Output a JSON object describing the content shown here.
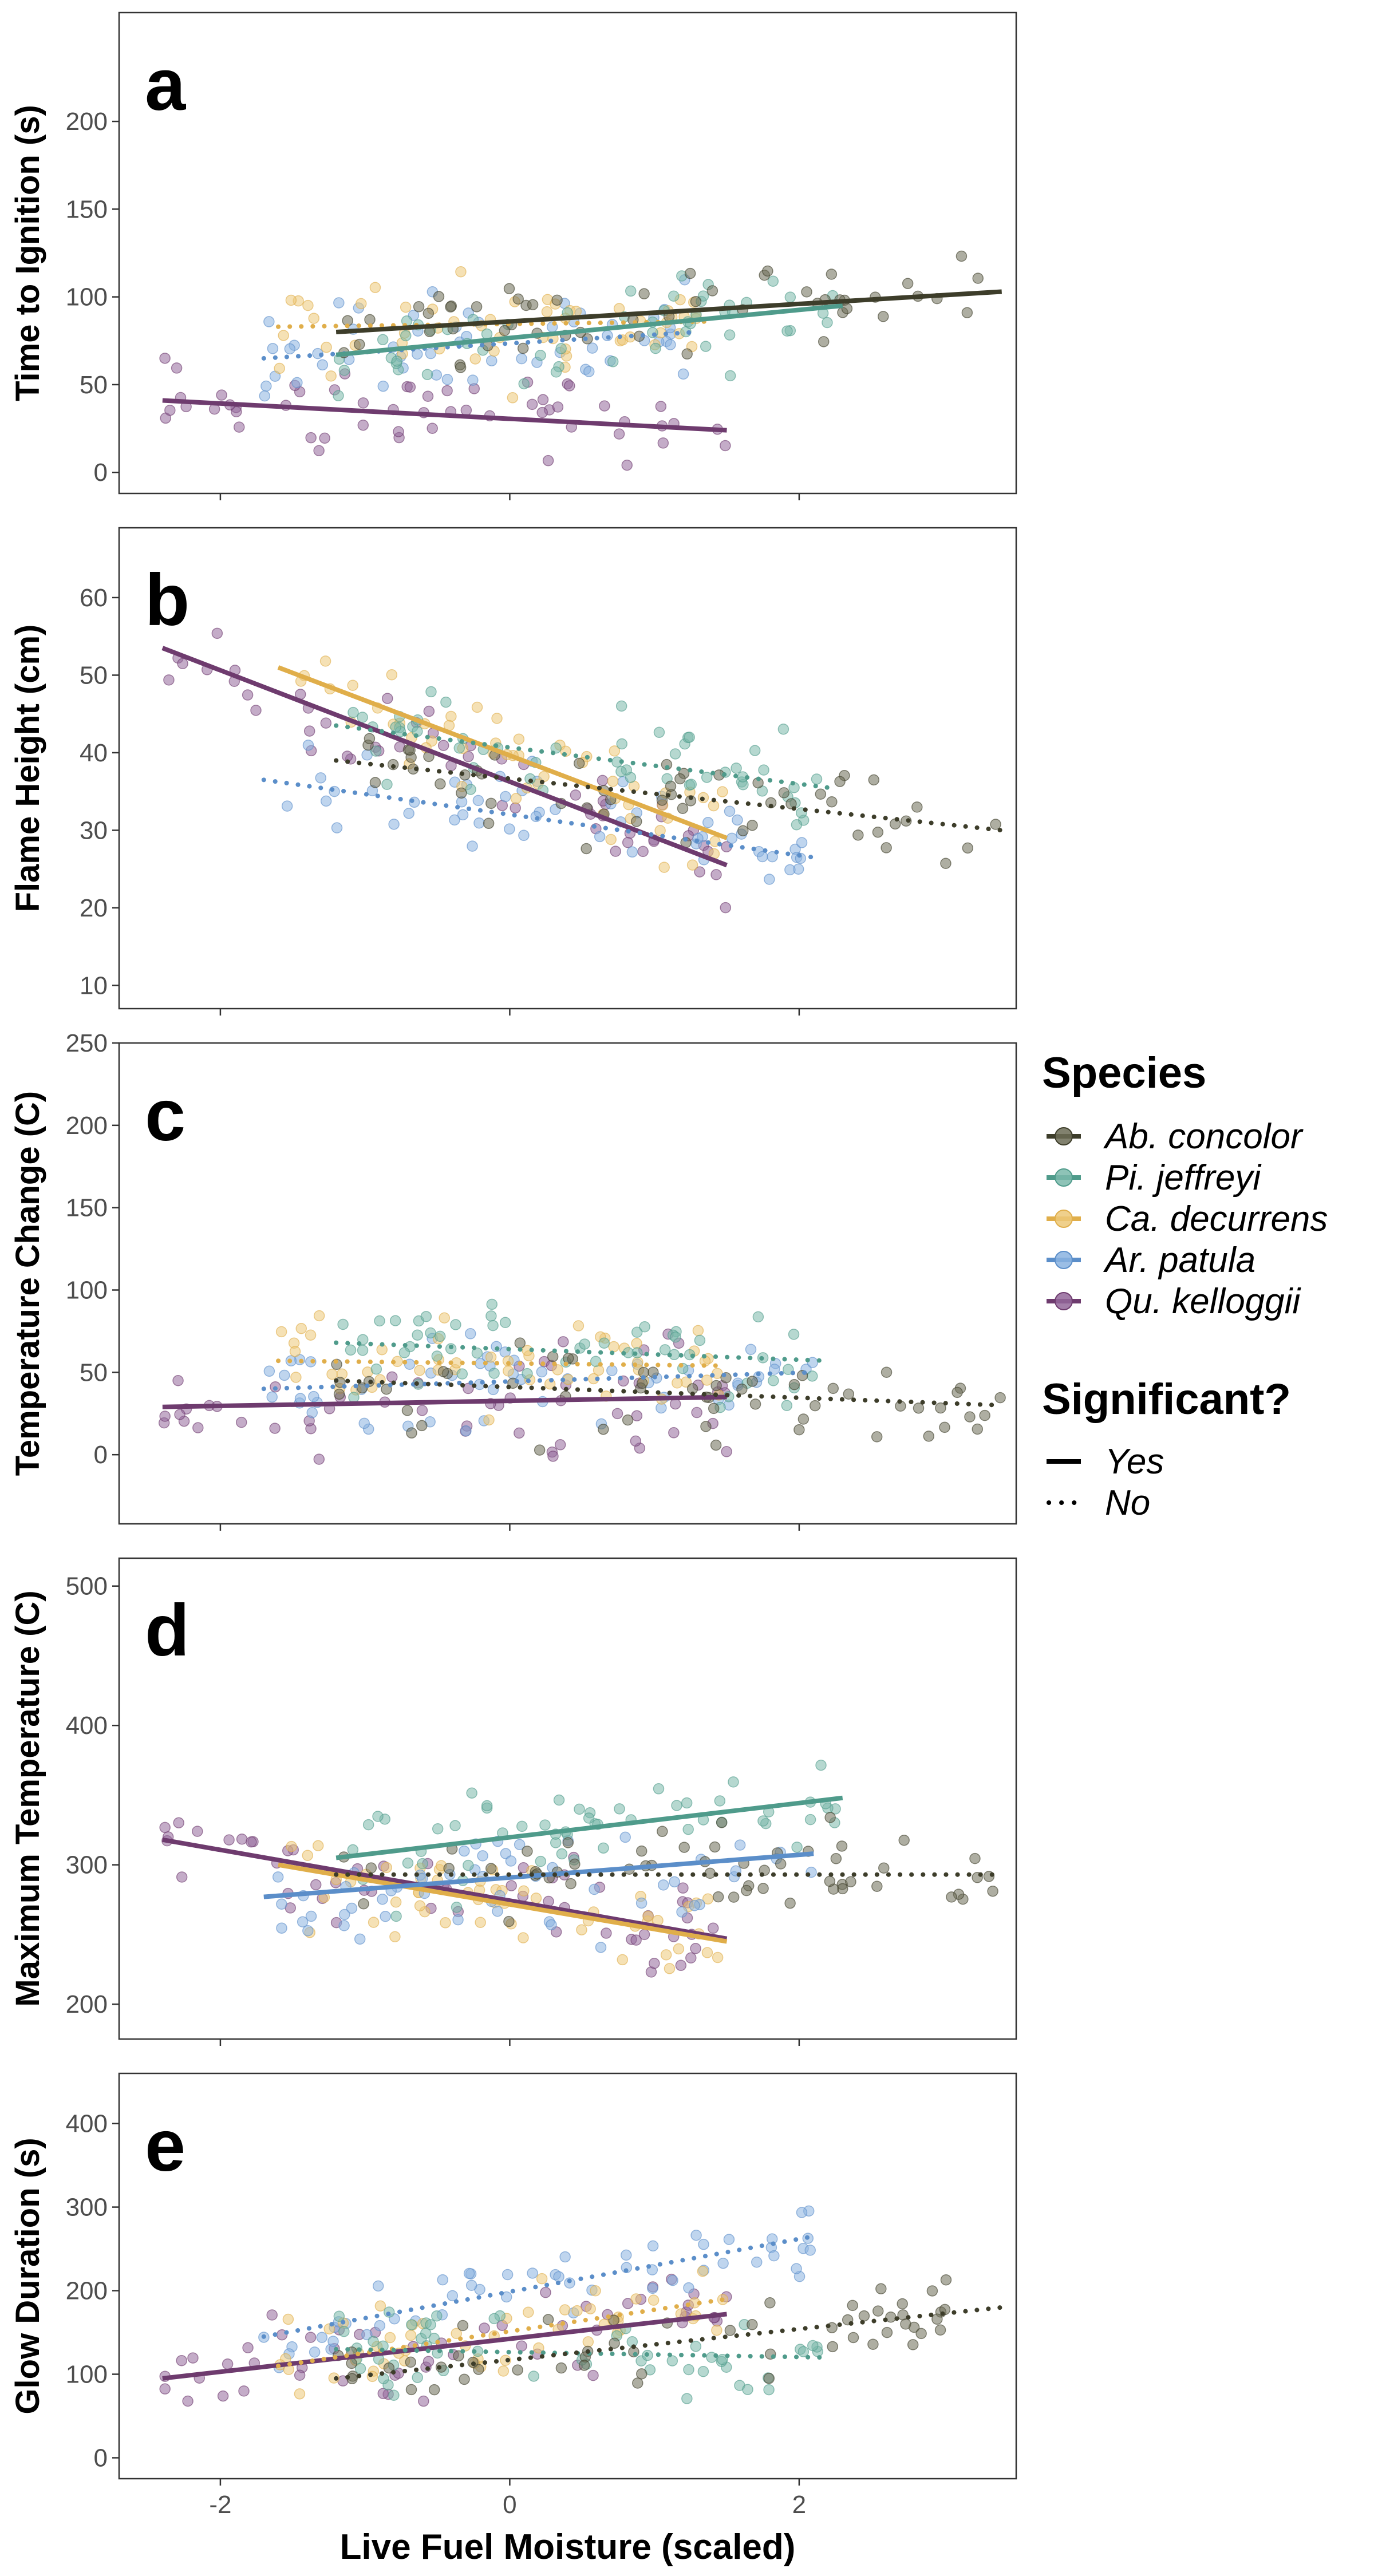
{
  "chart_data": [
    {
      "type": "scatter",
      "panel_label": "a",
      "ylabel": "Time to Ignition (s)",
      "xlim": [
        -2.7,
        3.5
      ],
      "ylim": [
        -12,
        262
      ],
      "yticks": [
        0,
        50,
        100,
        150,
        200
      ],
      "xticks": [
        -2,
        0,
        2
      ],
      "show_xticks": false,
      "grid": false,
      "lines": [
        {
          "species": "Qu. kelloggii",
          "x": [
            -2.4,
            1.5
          ],
          "y": [
            41,
            24
          ],
          "significant": true
        },
        {
          "species": "Ar. patula",
          "x": [
            -1.7,
            1.3
          ],
          "y": [
            65,
            80
          ],
          "significant": false
        },
        {
          "species": "Ca. decurrens",
          "x": [
            -1.6,
            1.4
          ],
          "y": [
            83,
            86
          ],
          "significant": false
        },
        {
          "species": "Pi. jeffreyi",
          "x": [
            -1.2,
            2.3
          ],
          "y": [
            67,
            95
          ],
          "significant": true
        },
        {
          "species": "Ab. concolor",
          "x": [
            -1.2,
            3.4
          ],
          "y": [
            80,
            103
          ],
          "significant": true
        }
      ]
    },
    {
      "type": "scatter",
      "panel_label": "b",
      "ylabel": "Flame Height (cm)",
      "xlim": [
        -2.7,
        3.5
      ],
      "ylim": [
        7,
        69
      ],
      "yticks": [
        10,
        20,
        30,
        40,
        50,
        60
      ],
      "xticks": [
        -2,
        0,
        2
      ],
      "show_xticks": false,
      "grid": false,
      "lines": [
        {
          "species": "Qu. kelloggii",
          "x": [
            -2.4,
            1.5
          ],
          "y": [
            53.5,
            25.5
          ],
          "significant": true
        },
        {
          "species": "Ar. patula",
          "x": [
            -1.7,
            2.1
          ],
          "y": [
            36.5,
            26.5
          ],
          "significant": false
        },
        {
          "species": "Ca. decurrens",
          "x": [
            -1.6,
            1.5
          ],
          "y": [
            51,
            29
          ],
          "significant": true
        },
        {
          "species": "Pi. jeffreyi",
          "x": [
            -1.2,
            2.2
          ],
          "y": [
            43.5,
            35.5
          ],
          "significant": false
        },
        {
          "species": "Ab. concolor",
          "x": [
            -1.2,
            3.4
          ],
          "y": [
            39,
            30
          ],
          "significant": false
        }
      ]
    },
    {
      "type": "scatter",
      "panel_label": "c",
      "ylabel": "Temperature Change (C)",
      "xlim": [
        -2.7,
        3.5
      ],
      "ylim": [
        -42,
        250
      ],
      "yticks": [
        0,
        50,
        100,
        150,
        200,
        250
      ],
      "xticks": [
        -2,
        0,
        2
      ],
      "show_xticks": false,
      "grid": false,
      "lines": [
        {
          "species": "Qu. kelloggii",
          "x": [
            -2.4,
            1.5
          ],
          "y": [
            29,
            35
          ],
          "significant": true
        },
        {
          "species": "Ar. patula",
          "x": [
            -1.7,
            2.1
          ],
          "y": [
            40,
            50
          ],
          "significant": false
        },
        {
          "species": "Ca. decurrens",
          "x": [
            -1.6,
            1.5
          ],
          "y": [
            57,
            54
          ],
          "significant": false
        },
        {
          "species": "Pi. jeffreyi",
          "x": [
            -1.2,
            2.2
          ],
          "y": [
            68,
            57
          ],
          "significant": false
        },
        {
          "species": "Ab. concolor",
          "x": [
            -1.2,
            3.4
          ],
          "y": [
            45,
            30
          ],
          "significant": false
        }
      ]
    },
    {
      "type": "scatter",
      "panel_label": "d",
      "ylabel": "Maximum Temperature (C)",
      "xlim": [
        -2.7,
        3.5
      ],
      "ylim": [
        175,
        520
      ],
      "yticks": [
        200,
        300,
        400,
        500
      ],
      "xticks": [
        -2,
        0,
        2
      ],
      "show_xticks": false,
      "grid": false,
      "lines": [
        {
          "species": "Qu. kelloggii",
          "x": [
            -2.4,
            1.5
          ],
          "y": [
            318,
            247
          ],
          "significant": true
        },
        {
          "species": "Ca. decurrens",
          "x": [
            -1.6,
            1.5
          ],
          "y": [
            300,
            245
          ],
          "significant": true
        },
        {
          "species": "Ar. patula",
          "x": [
            -1.7,
            2.1
          ],
          "y": [
            277,
            308
          ],
          "significant": true
        },
        {
          "species": "Pi. jeffreyi",
          "x": [
            -1.2,
            2.3
          ],
          "y": [
            305,
            348
          ],
          "significant": true
        },
        {
          "species": "Ab. concolor",
          "x": [
            -1.2,
            3.4
          ],
          "y": [
            293,
            293
          ],
          "significant": false
        }
      ]
    },
    {
      "type": "scatter",
      "panel_label": "e",
      "ylabel": "Glow Duration (s)",
      "xlabel": "Live Fuel Moisture (scaled)",
      "xlim": [
        -2.7,
        3.5
      ],
      "ylim": [
        -25,
        460
      ],
      "yticks": [
        0,
        100,
        200,
        300,
        400
      ],
      "xticks": [
        -2,
        0,
        2
      ],
      "show_xticks": true,
      "grid": false,
      "lines": [
        {
          "species": "Qu. kelloggii",
          "x": [
            -2.4,
            1.5
          ],
          "y": [
            95,
            172
          ],
          "significant": true
        },
        {
          "species": "Ar. patula",
          "x": [
            -1.7,
            2.1
          ],
          "y": [
            145,
            265
          ],
          "significant": false
        },
        {
          "species": "Ca. decurrens",
          "x": [
            -1.6,
            1.5
          ],
          "y": [
            110,
            190
          ],
          "significant": false
        },
        {
          "species": "Pi. jeffreyi",
          "x": [
            -1.2,
            2.2
          ],
          "y": [
            130,
            120
          ],
          "significant": false
        },
        {
          "species": "Ab. concolor",
          "x": [
            -1.2,
            3.4
          ],
          "y": [
            95,
            180
          ],
          "significant": false
        }
      ]
    }
  ],
  "point_clouds": {
    "Ab. concolor": {
      "x_center": 1.6,
      "x_spread": 0.9
    },
    "Pi. jeffreyi": {
      "x_center": 0.6,
      "x_spread": 0.8
    },
    "Ca. decurrens": {
      "x_center": 0.0,
      "x_spread": 0.75
    },
    "Ar. patula": {
      "x_center": 0.1,
      "x_spread": 0.85
    },
    "Qu. kelloggii": {
      "x_center": -0.6,
      "x_spread": 0.9
    }
  },
  "legend": {
    "title": "Species",
    "placement": "right",
    "items": [
      {
        "label": "Ab. concolor",
        "color": "#3d3d2a",
        "point_color": "#6b6b55"
      },
      {
        "label": "Pi. jeffreyi",
        "color": "#4f9b8b",
        "point_color": "#7ab8aa"
      },
      {
        "label": "Ca. decurrens",
        "color": "#e0ae4a",
        "point_color": "#ecc878"
      },
      {
        "label": "Ar. patula",
        "color": "#5b8ec9",
        "point_color": "#8ab3e0"
      },
      {
        "label": "Qu. kelloggii",
        "color": "#6e3b6e",
        "point_color": "#93679a"
      }
    ]
  },
  "sig_legend": {
    "title": "Significant?",
    "items": [
      {
        "label": "Yes",
        "style": "solid"
      },
      {
        "label": "No",
        "style": "dotted"
      }
    ]
  }
}
